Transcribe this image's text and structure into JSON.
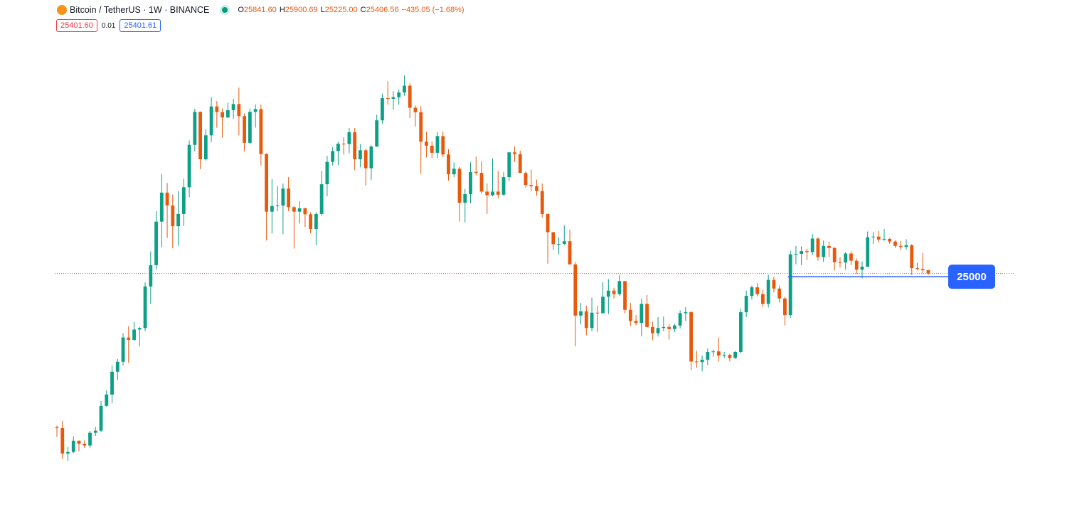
{
  "header": {
    "title": "Bitcoin / TetherUS · 1W · BINANCE",
    "ohlc": [
      {
        "key": "O",
        "value": "25841.60"
      },
      {
        "key": "H",
        "value": "25900.69"
      },
      {
        "key": "L",
        "value": "25225.00"
      },
      {
        "key": "C",
        "value": "25406.56"
      }
    ],
    "change": "−435.05 (−1.68%)",
    "sell": "25401.60",
    "spread": "0.01",
    "buy": "25401.61"
  },
  "chart_data": {
    "type": "candlestick",
    "log_scale": true,
    "up_color": "#0e9f87",
    "down_color": "#e8590c",
    "hline": {
      "value": 25000,
      "color": "#2962ff"
    },
    "candles": [
      [
        11700,
        11800,
        11150,
        11650
      ],
      [
        11650,
        12090,
        9960,
        10250
      ],
      [
        10250,
        10600,
        9880,
        10330
      ],
      [
        10330,
        11180,
        10270,
        10930
      ],
      [
        10930,
        10950,
        10370,
        10770
      ],
      [
        10770,
        10950,
        10530,
        10670
      ],
      [
        10670,
        11490,
        10530,
        11380
      ],
      [
        11380,
        11720,
        11200,
        11500
      ],
      [
        11500,
        13350,
        11420,
        13030
      ],
      [
        13030,
        14100,
        12980,
        13800
      ],
      [
        13800,
        15970,
        13200,
        15480
      ],
      [
        15480,
        16500,
        14850,
        16280
      ],
      [
        16280,
        18800,
        15980,
        18400
      ],
      [
        18400,
        19480,
        16200,
        18180
      ],
      [
        18180,
        19900,
        18100,
        19150
      ],
      [
        19150,
        19400,
        17600,
        19300
      ],
      [
        19300,
        24300,
        19000,
        23800
      ],
      [
        23800,
        28400,
        21800,
        26500
      ],
      [
        26500,
        34800,
        25900,
        33000
      ],
      [
        33000,
        42000,
        29000,
        38200
      ],
      [
        38200,
        40100,
        30400,
        35800
      ],
      [
        35800,
        37850,
        28850,
        32250
      ],
      [
        32250,
        38500,
        29200,
        34300
      ],
      [
        34300,
        40950,
        32300,
        39250
      ],
      [
        39250,
        49700,
        37300,
        48600
      ],
      [
        48600,
        58300,
        47000,
        57400
      ],
      [
        57400,
        57500,
        43000,
        45200
      ],
      [
        45200,
        52600,
        44900,
        51000
      ],
      [
        51000,
        61800,
        49300,
        59000
      ],
      [
        59000,
        60600,
        53000,
        57350
      ],
      [
        57350,
        58400,
        50400,
        55800
      ],
      [
        55800,
        60100,
        55700,
        57900
      ],
      [
        57900,
        61300,
        55400,
        59700
      ],
      [
        59700,
        64900,
        51000,
        56200
      ],
      [
        56200,
        57000,
        47000,
        49100
      ],
      [
        49100,
        58400,
        48800,
        57400
      ],
      [
        57400,
        59600,
        53000,
        58200
      ],
      [
        58200,
        59500,
        43800,
        46400
      ],
      [
        46400,
        46600,
        30000,
        34700
      ],
      [
        34700,
        40900,
        31100,
        35700
      ],
      [
        35700,
        39500,
        34800,
        35800
      ],
      [
        35800,
        40000,
        31000,
        39000
      ],
      [
        39000,
        41300,
        34800,
        35500
      ],
      [
        35500,
        35700,
        28800,
        34700
      ],
      [
        34700,
        36600,
        32700,
        35300
      ],
      [
        35300,
        35400,
        32100,
        34250
      ],
      [
        34250,
        34600,
        31100,
        31800
      ],
      [
        31800,
        34600,
        29300,
        34300
      ],
      [
        34300,
        42600,
        34000,
        39850
      ],
      [
        39850,
        46000,
        37500,
        44600
      ],
      [
        44600,
        48100,
        43800,
        47100
      ],
      [
        47100,
        49400,
        43900,
        48900
      ],
      [
        48900,
        50500,
        46300,
        48800
      ],
      [
        48800,
        52900,
        46600,
        51800
      ],
      [
        51800,
        52900,
        42800,
        45200
      ],
      [
        45200,
        48800,
        43400,
        47300
      ],
      [
        47300,
        47700,
        39600,
        43200
      ],
      [
        43200,
        48500,
        40750,
        48200
      ],
      [
        48200,
        56600,
        48100,
        55000
      ],
      [
        55000,
        62900,
        54100,
        61500
      ],
      [
        61500,
        67000,
        59500,
        61300
      ],
      [
        61300,
        63700,
        58000,
        61800
      ],
      [
        61800,
        64300,
        59500,
        63300
      ],
      [
        63300,
        69000,
        62300,
        65500
      ],
      [
        65500,
        66300,
        55600,
        58600
      ],
      [
        58600,
        59300,
        53300,
        57300
      ],
      [
        57300,
        59100,
        42000,
        49400
      ],
      [
        49400,
        51950,
        45600,
        48400
      ],
      [
        48400,
        49500,
        45500,
        46700
      ],
      [
        46700,
        51800,
        45500,
        50800
      ],
      [
        50800,
        52000,
        45700,
        46300
      ],
      [
        46300,
        47550,
        40600,
        41900
      ],
      [
        41900,
        44500,
        41300,
        43100
      ],
      [
        43100,
        43500,
        33000,
        36300
      ],
      [
        36300,
        38900,
        32900,
        37900
      ],
      [
        37900,
        44500,
        36200,
        42400
      ],
      [
        42400,
        45850,
        41700,
        42200
      ],
      [
        42200,
        44800,
        38000,
        38400
      ],
      [
        38400,
        40000,
        34300,
        37700
      ],
      [
        37700,
        45400,
        37500,
        38400
      ],
      [
        38400,
        42600,
        37100,
        37800
      ],
      [
        37800,
        42400,
        37600,
        41300
      ],
      [
        41300,
        46900,
        40500,
        46800
      ],
      [
        46800,
        48200,
        44600,
        46400
      ],
      [
        46400,
        47200,
        42200,
        42200
      ],
      [
        42200,
        42500,
        39200,
        39700
      ],
      [
        39700,
        42900,
        38500,
        39450
      ],
      [
        39450,
        40800,
        37600,
        38500
      ],
      [
        38500,
        40000,
        33700,
        34300
      ],
      [
        34300,
        34400,
        26700,
        31300
      ],
      [
        31300,
        31300,
        28600,
        29450
      ],
      [
        29450,
        30500,
        28000,
        29500
      ],
      [
        29500,
        32400,
        29300,
        29900
      ],
      [
        29900,
        31700,
        26600,
        26600
      ],
      [
        26600,
        26900,
        17600,
        20550
      ],
      [
        20550,
        21900,
        19650,
        21000
      ],
      [
        21000,
        21600,
        18600,
        19300
      ],
      [
        19300,
        22500,
        19000,
        20850
      ],
      [
        20850,
        21600,
        18900,
        20800
      ],
      [
        20800,
        24300,
        20750,
        22600
      ],
      [
        22600,
        24700,
        20700,
        23300
      ],
      [
        23300,
        23650,
        22400,
        22900
      ],
      [
        22900,
        25200,
        22700,
        24450
      ],
      [
        24450,
        24450,
        20800,
        21150
      ],
      [
        21150,
        21900,
        19500,
        20000
      ],
      [
        20000,
        20600,
        19550,
        19800
      ],
      [
        19800,
        22400,
        18500,
        21800
      ],
      [
        21800,
        22800,
        19350,
        19400
      ],
      [
        19400,
        19950,
        18150,
        18800
      ],
      [
        18800,
        20400,
        18500,
        19300
      ],
      [
        19300,
        20450,
        19000,
        19400
      ],
      [
        19400,
        19700,
        18200,
        19200
      ],
      [
        19200,
        19700,
        18900,
        19550
      ],
      [
        19550,
        21100,
        19250,
        20800
      ],
      [
        20800,
        21450,
        20000,
        20900
      ],
      [
        20900,
        21050,
        15600,
        16300
      ],
      [
        16300,
        17200,
        15800,
        16250
      ],
      [
        16250,
        16800,
        15500,
        16450
      ],
      [
        16450,
        17400,
        16000,
        17100
      ],
      [
        17100,
        17300,
        16700,
        17150
      ],
      [
        17150,
        18400,
        16300,
        16800
      ],
      [
        16800,
        17100,
        16600,
        16850
      ],
      [
        16850,
        16950,
        16300,
        16600
      ],
      [
        16600,
        17200,
        16500,
        17100
      ],
      [
        17100,
        21300,
        17000,
        20900
      ],
      [
        20900,
        23300,
        20400,
        22700
      ],
      [
        22700,
        23900,
        22300,
        23700
      ],
      [
        23700,
        24200,
        22600,
        22900
      ],
      [
        22900,
        23400,
        21450,
        21800
      ],
      [
        21800,
        25250,
        21400,
        24600
      ],
      [
        24600,
        25000,
        23100,
        23550
      ],
      [
        23550,
        23900,
        21950,
        22400
      ],
      [
        22400,
        22600,
        19550,
        20600
      ],
      [
        20600,
        28500,
        20300,
        27980
      ],
      [
        27980,
        29200,
        26600,
        28050
      ],
      [
        28050,
        29150,
        26500,
        28450
      ],
      [
        28450,
        28800,
        27200,
        28300
      ],
      [
        28300,
        31000,
        27900,
        30300
      ],
      [
        30300,
        30500,
        27100,
        27600
      ],
      [
        27600,
        30000,
        26950,
        29200
      ],
      [
        29200,
        29800,
        27650,
        28900
      ],
      [
        28900,
        29000,
        25800,
        26900
      ],
      [
        26900,
        27600,
        26200,
        26850
      ],
      [
        26850,
        28300,
        25900,
        28100
      ],
      [
        28100,
        28400,
        26500,
        27100
      ],
      [
        27100,
        27400,
        25350,
        25900
      ],
      [
        25900,
        27000,
        24800,
        26300
      ],
      [
        26300,
        31400,
        26250,
        30500
      ],
      [
        30500,
        31300,
        29500,
        30600
      ],
      [
        30600,
        31500,
        29700,
        30150
      ],
      [
        30150,
        31800,
        29950,
        30250
      ],
      [
        30250,
        30400,
        29500,
        29850
      ],
      [
        29850,
        30050,
        28900,
        29200
      ],
      [
        29200,
        29950,
        28600,
        29050
      ],
      [
        29050,
        30200,
        28700,
        29300
      ],
      [
        29300,
        29450,
        25200,
        26100
      ],
      [
        26100,
        26800,
        25800,
        26000
      ],
      [
        26000,
        28150,
        25400,
        25841.6
      ],
      [
        25841.6,
        25900.69,
        25225,
        25406.56
      ]
    ]
  }
}
